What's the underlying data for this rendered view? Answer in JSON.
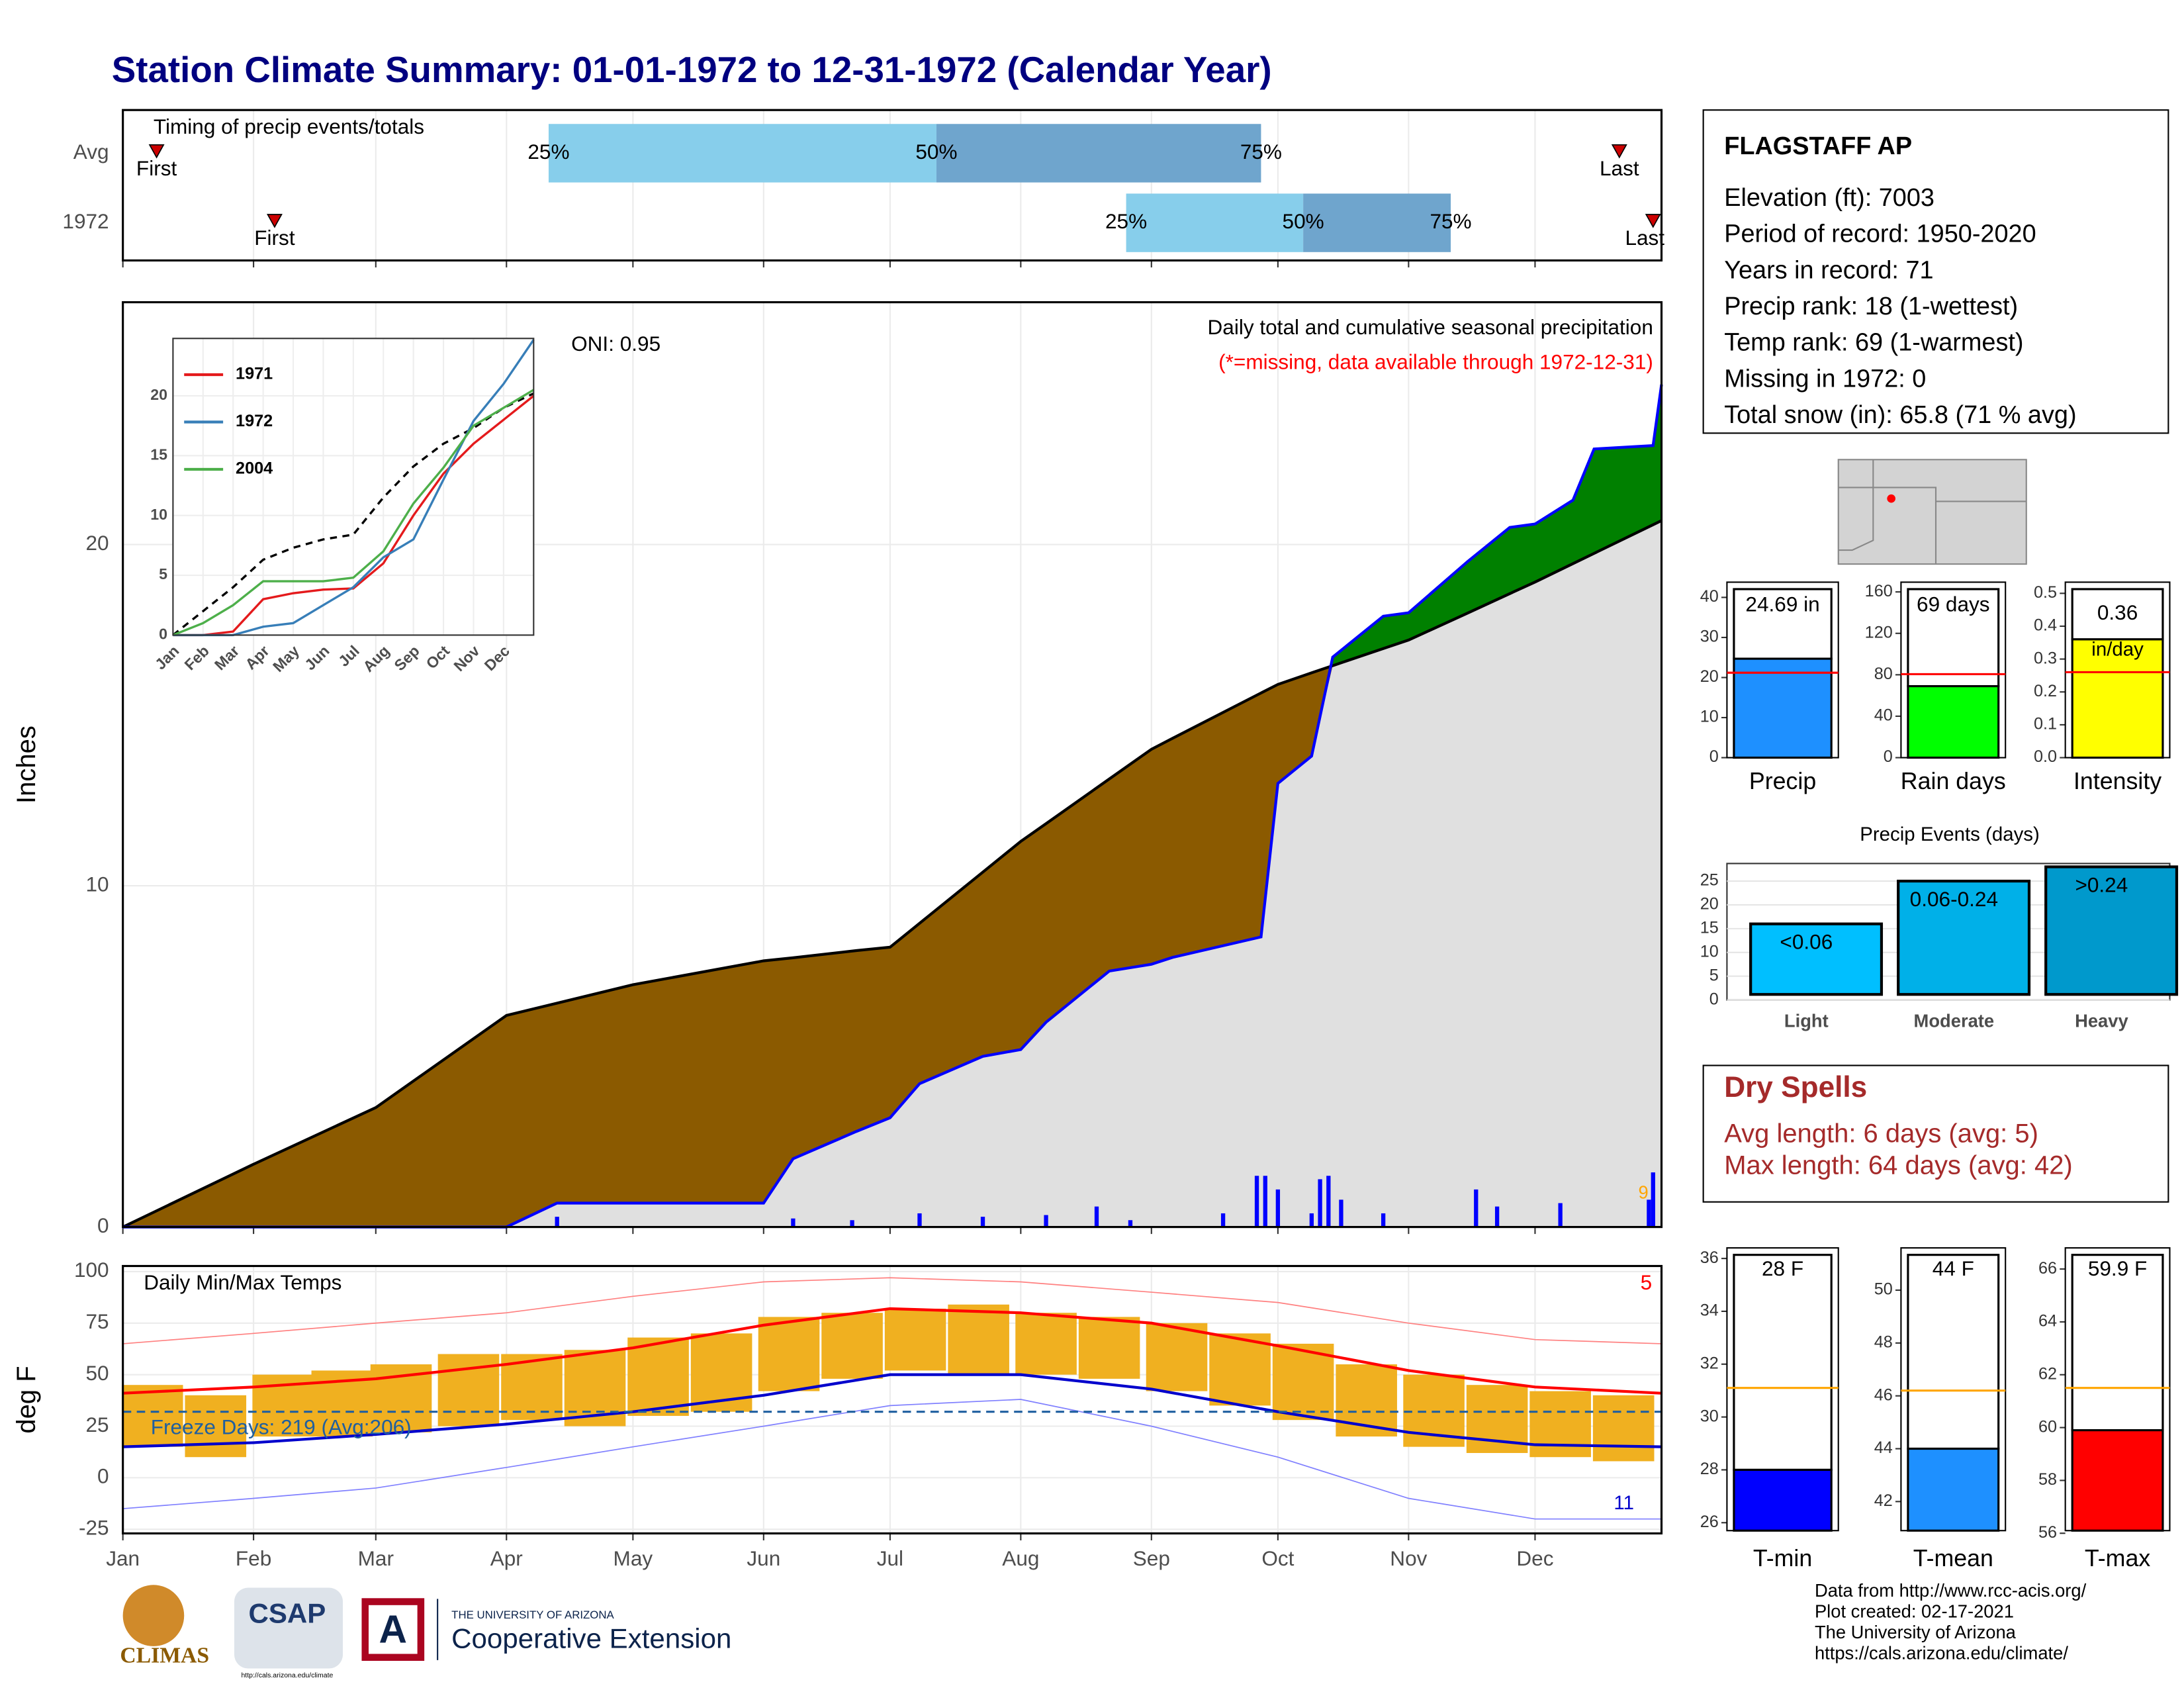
{
  "title": "Station Climate Summary: 01-01-1972 to 12-31-1972 (Calendar Year)",
  "chart_data": [
    {
      "type": "timing",
      "title": "Timing of precip events/totals",
      "xlim": [
        1,
        366
      ],
      "categories": [
        "Avg",
        "1972"
      ],
      "first": [
        9,
        37
      ],
      "last": [
        356,
        364
      ],
      "q25": [
        102,
        239
      ],
      "q50": [
        194,
        281
      ],
      "q75": [
        271,
        316
      ],
      "first_label": "First",
      "last_label": "Last",
      "quantile_labels": [
        "25%",
        "50%",
        "75%"
      ],
      "colors": [
        "#87ceeb",
        "#6fa5cd"
      ],
      "marker_color": "#cc0000"
    },
    {
      "type": "cumulative",
      "title": "Daily total and cumulative seasonal precipitation",
      "subtitle": "(*=missing, data available through 1972-12-31)",
      "annotation": "ONI: 0.95",
      "corner_mark": "9",
      "ylabel": "Inches",
      "xlim": [
        1,
        366
      ],
      "ylim": [
        0,
        27.1
      ],
      "yticks": [
        0,
        10,
        20
      ],
      "grid": true,
      "x": [
        1,
        32,
        61,
        92,
        104,
        122,
        153,
        160,
        175,
        183,
        190,
        205,
        214,
        220,
        235,
        245,
        250,
        271,
        275,
        283,
        288,
        300,
        306,
        320,
        330,
        336,
        345,
        350,
        364,
        366
      ],
      "series": [
        {
          "values": [
            0,
            1.84,
            3.5,
            6.2,
            6.56,
            7.1,
            7.8,
            7.89,
            8.1,
            8.2,
            8.9,
            10.4,
            11.3,
            11.82,
            13.13,
            14.0,
            14.32,
            15.65,
            15.9,
            16.24,
            16.45,
            16.95,
            17.2,
            17.99,
            18.56,
            18.9,
            19.44,
            19.74,
            20.58,
            20.7
          ],
          "color": "#000000",
          "fill": "#8b5a00"
        },
        {
          "values": [
            0,
            0,
            0,
            0,
            0.7,
            0.7,
            0.7,
            2.0,
            2.8,
            3.2,
            4.2,
            5.0,
            5.2,
            6.0,
            7.5,
            7.7,
            7.9,
            8.5,
            13.0,
            13.8,
            16.7,
            17.9,
            18.0,
            19.5,
            20.5,
            20.6,
            21.3,
            22.8,
            22.9,
            24.69
          ],
          "color": "#0000ff",
          "fill": "#008000"
        }
      ],
      "overlap_color": "#e0e0e0",
      "daily": {
        "x": [
          104,
          160,
          174,
          190,
          205,
          220,
          232,
          240,
          262,
          270,
          272,
          275,
          283,
          285,
          287,
          290,
          300,
          322,
          327,
          342,
          363,
          364
        ],
        "values": [
          0.3,
          0.25,
          0.2,
          0.4,
          0.3,
          0.35,
          0.6,
          0.2,
          0.4,
          1.5,
          1.5,
          1.1,
          0.4,
          1.4,
          1.5,
          0.8,
          0.4,
          1.1,
          0.6,
          0.7,
          0.8,
          1.6
        ],
        "color": "#0000ff"
      }
    },
    {
      "type": "line",
      "x": [
        0,
        1,
        2,
        3,
        4,
        5,
        6,
        7,
        8,
        9,
        10,
        11,
        12
      ],
      "xlim": [
        0,
        12
      ],
      "ylim": [
        0,
        24.8
      ],
      "yticks": [
        0,
        5,
        10,
        15,
        20
      ],
      "xticks": [
        {
          "value": 0,
          "label": "Jan"
        },
        {
          "value": 1,
          "label": "Feb"
        },
        {
          "value": 2,
          "label": "Mar"
        },
        {
          "value": 3,
          "label": "Apr"
        },
        {
          "value": 4,
          "label": "May"
        },
        {
          "value": 5,
          "label": "Jun"
        },
        {
          "value": 6,
          "label": "Jul"
        },
        {
          "value": 7,
          "label": "Aug"
        },
        {
          "value": 8,
          "label": "Sep"
        },
        {
          "value": 9,
          "label": "Oct"
        },
        {
          "value": 10,
          "label": "Nov"
        },
        {
          "value": 11,
          "label": "Dec"
        }
      ],
      "average": {
        "values": [
          0,
          2.0,
          4.0,
          6.3,
          7.3,
          8.0,
          8.4,
          11.5,
          14.1,
          16.0,
          17.3,
          19.0,
          20.2
        ],
        "color": "#000000"
      },
      "series": [
        {
          "name": "1971",
          "color": "#e41a1c",
          "values": [
            0,
            0,
            0.3,
            3.0,
            3.5,
            3.8,
            3.9,
            6.0,
            10.0,
            13.5,
            16.0,
            18.0,
            20.0
          ]
        },
        {
          "name": "1972",
          "color": "#377eb8",
          "values": [
            0,
            0,
            0,
            0.7,
            1.0,
            2.5,
            4.0,
            6.5,
            8.0,
            13.0,
            17.9,
            21.0,
            24.69
          ]
        },
        {
          "name": "2004",
          "color": "#4daf4a",
          "values": [
            0,
            1.0,
            2.5,
            4.5,
            4.5,
            4.5,
            4.8,
            7.0,
            11.0,
            14.0,
            17.5,
            19.0,
            20.5
          ]
        }
      ]
    },
    {
      "type": "summary_bar",
      "label": "Precip",
      "value": 24.69,
      "value_label": "24.69 in",
      "avg": 21.2,
      "color": "#1e90ff",
      "avg_color": "#ff0000",
      "ylim": [
        0,
        43.8
      ],
      "yticks": [
        0,
        10,
        20,
        30,
        40
      ]
    },
    {
      "type": "summary_bar",
      "label": "Rain days",
      "value": 69,
      "value_label": "69 days",
      "avg": 80.6,
      "color": "#00ff00",
      "avg_color": "#ff0000",
      "ylim": [
        0,
        169.4
      ],
      "yticks": [
        0,
        40,
        80,
        120,
        160
      ]
    },
    {
      "type": "summary_bar",
      "label": "Intensity",
      "value": 0.36,
      "value_label": "0.36",
      "unit_label": "in/day",
      "avg": 0.26,
      "color": "#ffff00",
      "avg_color": "#ff0000",
      "ylim": [
        0,
        0.534
      ],
      "yticks": [
        {
          "value": 0,
          "label": "0.0"
        },
        {
          "value": 0.1,
          "label": "0.1"
        },
        {
          "value": 0.2,
          "label": "0.2"
        },
        {
          "value": 0.3,
          "label": "0.3"
        },
        {
          "value": 0.4,
          "label": "0.4"
        },
        {
          "value": 0.5,
          "label": "0.5"
        }
      ]
    },
    {
      "type": "events",
      "title": "Precip Events (days)",
      "categories": [
        "Light",
        "Moderate",
        "Heavy"
      ],
      "range_labels": [
        "<0.06",
        "0.06-0.24",
        ">0.24"
      ],
      "values": [
        16,
        25,
        28
      ],
      "colors": [
        "#00bfff",
        "#00b0e8",
        "#0099cc"
      ],
      "ylim": [
        0,
        28.7
      ],
      "yticks": [
        0,
        5,
        10,
        15,
        20,
        25
      ]
    },
    {
      "type": "temps",
      "title": "Daily Min/Max Temps",
      "ylabel": "deg F",
      "xlim": [
        1,
        366
      ],
      "ylim": [
        -27,
        102.7
      ],
      "yticks": [
        -25,
        0,
        25,
        50,
        75,
        100
      ],
      "xticks": [
        {
          "value": 1,
          "label": "Jan"
        },
        {
          "value": 32,
          "label": "Feb"
        },
        {
          "value": 61,
          "label": "Mar"
        },
        {
          "value": 92,
          "label": "Apr"
        },
        {
          "value": 122,
          "label": "May"
        },
        {
          "value": 153,
          "label": "Jun"
        },
        {
          "value": 183,
          "label": "Jul"
        },
        {
          "value": 214,
          "label": "Aug"
        },
        {
          "value": 245,
          "label": "Sep"
        },
        {
          "value": 275,
          "label": "Oct"
        },
        {
          "value": 306,
          "label": "Nov"
        },
        {
          "value": 336,
          "label": "Dec"
        }
      ],
      "x": [
        1,
        32,
        61,
        92,
        122,
        153,
        183,
        214,
        245,
        275,
        306,
        336,
        366
      ],
      "lines": [
        {
          "values": [
            65,
            70,
            75,
            80,
            88,
            95,
            97,
            95,
            90,
            85,
            75,
            67,
            65
          ],
          "color": "#ff8080",
          "width": 0.8
        },
        {
          "values": [
            -15,
            -10,
            -5,
            5,
            15,
            25,
            35,
            38,
            25,
            10,
            -10,
            -20,
            -20
          ],
          "color": "#8080ff",
          "width": 0.8
        },
        {
          "values": [
            41,
            44,
            48,
            55,
            63,
            74,
            82,
            80,
            75,
            64,
            52,
            44,
            41
          ],
          "color": "#ff0000",
          "width": 2
        },
        {
          "values": [
            15,
            17,
            21,
            26,
            32,
            40,
            50,
            50,
            43,
            32,
            22,
            16,
            15
          ],
          "color": "#0000cc",
          "width": 2
        }
      ],
      "bars": {
        "x": [
          8,
          23,
          39,
          53,
          67,
          83,
          98,
          113,
          128,
          143,
          159,
          174,
          189,
          204,
          220,
          235,
          251,
          266,
          281,
          296,
          312,
          327,
          342,
          357
        ],
        "max": [
          45,
          40,
          50,
          52,
          55,
          60,
          60,
          62,
          68,
          70,
          78,
          80,
          82,
          84,
          80,
          78,
          75,
          70,
          65,
          55,
          50,
          45,
          42,
          40
        ],
        "min": [
          15,
          10,
          20,
          20,
          22,
          25,
          28,
          25,
          30,
          32,
          42,
          48,
          52,
          50,
          50,
          48,
          42,
          35,
          28,
          20,
          15,
          12,
          10,
          8
        ],
        "color": "#f0b020"
      },
      "freeze_line": 32,
      "freeze_label": "Freeze Days: 219 (Avg:206)",
      "freeze_color": "#1f5fa0",
      "record_high_count": "5",
      "record_low_count": "11"
    },
    {
      "type": "summary_bar",
      "label": "T-min",
      "value": 28,
      "value_label": "28 F",
      "avg": 31.1,
      "color": "#0000ff",
      "avg_color": "#ffa500",
      "ylim": [
        25.7,
        36.4
      ],
      "yticks": [
        26,
        28,
        30,
        32,
        34,
        36
      ]
    },
    {
      "type": "summary_bar",
      "label": "T-mean",
      "value": 44,
      "value_label": "44 F",
      "avg": 46.2,
      "color": "#1e90ff",
      "avg_color": "#ffa500",
      "ylim": [
        40.9,
        51.6
      ],
      "yticks": [
        42,
        44,
        46,
        48,
        50
      ]
    },
    {
      "type": "summary_bar",
      "label": "T-max",
      "value": 59.9,
      "value_label": "59.9 F",
      "avg": 61.5,
      "color": "#ff0000",
      "avg_color": "#ffa500",
      "ylim": [
        56.1,
        66.8
      ],
      "yticks": [
        56,
        58,
        60,
        62,
        64,
        66
      ]
    }
  ],
  "station": {
    "name": "FLAGSTAFF AP",
    "lines": [
      "Elevation (ft): 7003",
      "Period of record: 1950-2020",
      "Years in record: 71",
      "Precip rank: 18 (1-wettest)",
      "Temp rank: 69 (1-warmest)",
      "Missing in 1972: 0",
      "Total snow (in): 65.8 (71 % avg)"
    ]
  },
  "dry_spells": {
    "title": "Dry Spells",
    "lines": [
      "Avg length: 6 days (avg: 5)",
      "Max length: 64 days (avg: 42)"
    ]
  },
  "footer": {
    "logos": [
      "CLIMAS",
      "CSAP",
      "THE UNIVERSITY OF ARIZONA",
      "Cooperative Extension",
      "http://cals.arizona.edu/climate"
    ],
    "credits": [
      "Data from http://www.rcc-acis.org/",
      "Plot created: 02-17-2021",
      "The University of Arizona",
      "https://cals.arizona.edu/climate/"
    ]
  }
}
